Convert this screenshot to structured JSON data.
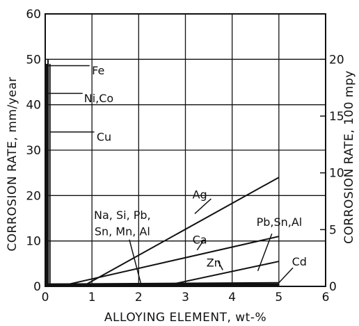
{
  "chart_data": {
    "type": "line",
    "xlabel": "ALLOYING ELEMENT, wt-%",
    "ylabel": "CORROSION RATE, mm/year",
    "ylabel_right": "CORROSION RATE, 100 mpy",
    "xlim": [
      0,
      6
    ],
    "ylim": [
      0,
      60
    ],
    "ylim_right": [
      0,
      24
    ],
    "x_ticks": [
      "0",
      "1",
      "2",
      "3",
      "4",
      "5",
      "6"
    ],
    "y_ticks": [
      "0",
      "10",
      "20",
      "30",
      "40",
      "50",
      "60"
    ],
    "y_ticks_right": [
      "0",
      "5",
      "10",
      "15",
      "20"
    ],
    "grid": true,
    "series": [
      {
        "name": "Fe",
        "x": [
          0.03,
          0.03
        ],
        "y": [
          49,
          0
        ]
      },
      {
        "name": "Ni,Co",
        "x": [
          0.06,
          0.06
        ],
        "y": [
          50,
          0
        ]
      },
      {
        "name": "Cu",
        "x": [
          0.1,
          0.1
        ],
        "y": [
          49,
          0
        ]
      },
      {
        "name": "Ag",
        "x": [
          0.8,
          5.0
        ],
        "y": [
          0,
          24
        ]
      },
      {
        "name": "Ca",
        "x": [
          0.3,
          5.0
        ],
        "y": [
          0,
          11
        ]
      },
      {
        "name": "Zn",
        "x": [
          2.5,
          5.0
        ],
        "y": [
          0,
          5.5
        ]
      },
      {
        "name": "Cd",
        "x": [
          0,
          5.0
        ],
        "y": [
          0.5,
          0.8
        ]
      },
      {
        "name": "Pb,Sn,Al",
        "x": [
          0,
          5.0
        ],
        "y": [
          0.3,
          0.3
        ]
      },
      {
        "name": "Na, Si, Pb,\nSn, Mn, Al",
        "x": [
          0,
          5.0
        ],
        "y": [
          0.5,
          0.5
        ]
      }
    ],
    "annotations": [
      {
        "text": "Fe",
        "points_to": "Fe"
      },
      {
        "text": "Ni,Co",
        "points_to": "Ni,Co"
      },
      {
        "text": "Cu",
        "points_to": "Cu"
      },
      {
        "text": "Ag",
        "points_to": "Ag"
      },
      {
        "text": "Ca",
        "points_to": "Ca"
      },
      {
        "text": "Zn",
        "points_to": "Zn"
      },
      {
        "text": "Cd",
        "points_to": "Cd"
      },
      {
        "text": "Pb,Sn,Al",
        "points_to": "Pb,Sn,Al"
      },
      {
        "text": "Na, Si, Pb,",
        "points_to": "Na, Si, Pb, Sn, Mn, Al"
      },
      {
        "text": "Sn, Mn, Al",
        "points_to": "Na, Si, Pb, Sn, Mn, Al"
      }
    ],
    "colors": {
      "line": "#111111",
      "grid": "#111111",
      "background": "#ffffff"
    }
  }
}
